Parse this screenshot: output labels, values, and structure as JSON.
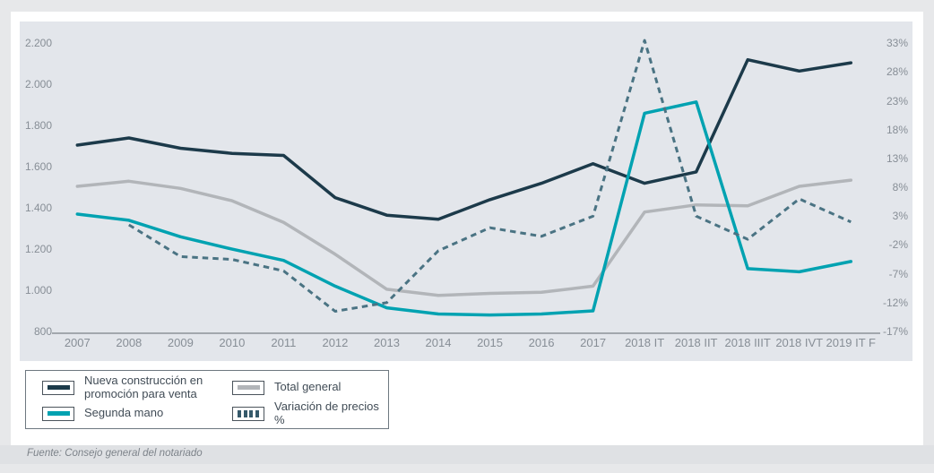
{
  "source": "Fuente: Consejo general del notariado",
  "chart_data": {
    "type": "line",
    "categories": [
      "2007",
      "2008",
      "2009",
      "2010",
      "2011",
      "2012",
      "2013",
      "2014",
      "2015",
      "2016",
      "2017",
      "2018 IT",
      "2018 IIT",
      "2018 IIIT",
      "2018 IVT",
      "2019 IT F"
    ],
    "series": [
      {
        "name": "Nueva construcción en promoción para venta",
        "axis": "left",
        "line_style": "solid",
        "color": "#1c3a4a",
        "values": [
          1705,
          1740,
          1690,
          1665,
          1655,
          1450,
          1365,
          1345,
          1440,
          1520,
          1615,
          1520,
          1575,
          2120,
          2065,
          2105
        ]
      },
      {
        "name": "Segunda mano",
        "axis": "left",
        "line_style": "solid",
        "color": "#00a2b1",
        "values": [
          1370,
          1340,
          1260,
          1200,
          1145,
          1020,
          915,
          885,
          880,
          885,
          900,
          1860,
          1915,
          1105,
          1090,
          1140
        ]
      },
      {
        "name": "Total general",
        "axis": "left",
        "line_style": "solid",
        "color": "#b2b5b9",
        "values": [
          1505,
          1530,
          1495,
          1435,
          1330,
          1175,
          1005,
          975,
          985,
          990,
          1020,
          1380,
          1415,
          1410,
          1505,
          1535
        ]
      },
      {
        "name": "Variación de precios %",
        "axis": "right",
        "line_style": "dashed",
        "color": "#4a7383",
        "legend_color": "#35596a",
        "values": [
          null,
          1.5,
          -4,
          -4.5,
          -6.5,
          -13.5,
          -12,
          -3,
          1,
          -0.5,
          3,
          33.5,
          3,
          -1,
          6,
          2
        ]
      }
    ],
    "left_axis": {
      "min": 800,
      "max": 2200,
      "tick_step": 200,
      "tick_labels": [
        "2.200",
        "2.000",
        "1.800",
        "1.600",
        "1.400",
        "1.200",
        "1.000",
        "800"
      ]
    },
    "right_axis": {
      "min": -17,
      "max": 33,
      "tick_step": 5,
      "tick_labels": [
        "33%",
        "28%",
        "23%",
        "18%",
        "13%",
        "8%",
        "3%",
        "-2%",
        "-7%",
        "-12%",
        "-17%"
      ]
    },
    "grid": false,
    "legend_position": "bottom-left",
    "legend_order": [
      0,
      2,
      1,
      3
    ],
    "draw_order": [
      2,
      0,
      1,
      3
    ]
  }
}
